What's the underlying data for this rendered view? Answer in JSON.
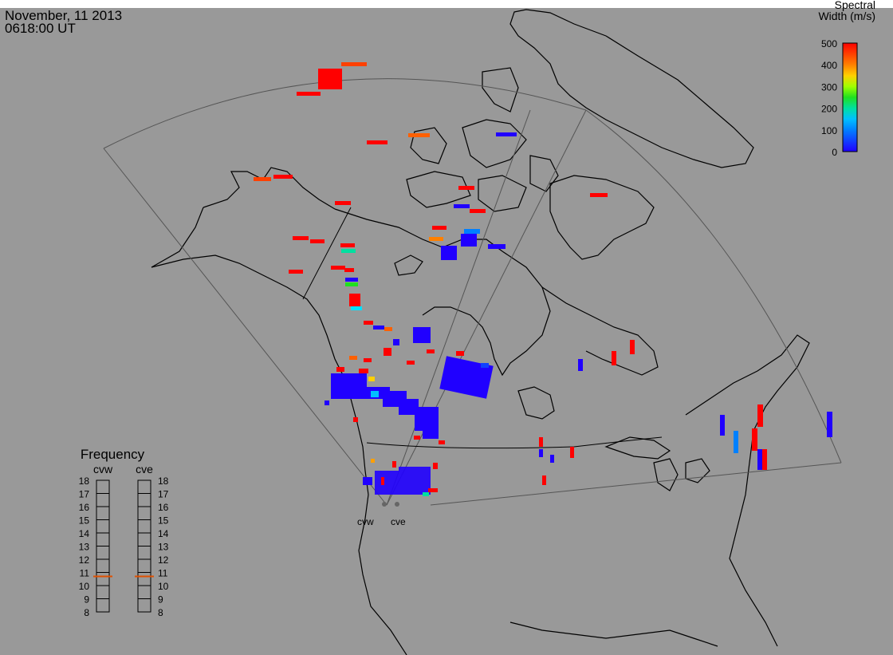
{
  "header": {
    "date": "November, 11 2013",
    "time": "0618:00 UT"
  },
  "colorbar": {
    "title_line1": "Spectral",
    "title_line2": "Width (m/s)",
    "ticks": [
      "500",
      "400",
      "300",
      "200",
      "100",
      "0"
    ],
    "colors": [
      "#ff0000",
      "#ff4000",
      "#ff8000",
      "#ffd000",
      "#a0ff00",
      "#20e020",
      "#00e0a0",
      "#00c0ff",
      "#0080ff",
      "#1040ff",
      "#2000ff"
    ]
  },
  "frequency_panel": {
    "title": "Frequency",
    "radars": [
      "cvw",
      "cve"
    ],
    "ticks": [
      "18",
      "17",
      "16",
      "15",
      "14",
      "13",
      "12",
      "11",
      "10",
      "9",
      "8"
    ],
    "cvw_mhz": 10.7,
    "cve_mhz": 10.7,
    "marker_color": "#e05000"
  },
  "radar_sites": [
    {
      "label": "cvw"
    },
    {
      "label": "cve"
    }
  ],
  "colors": {
    "background": "#999999",
    "coastline": "#000000",
    "fov": "#555555"
  }
}
